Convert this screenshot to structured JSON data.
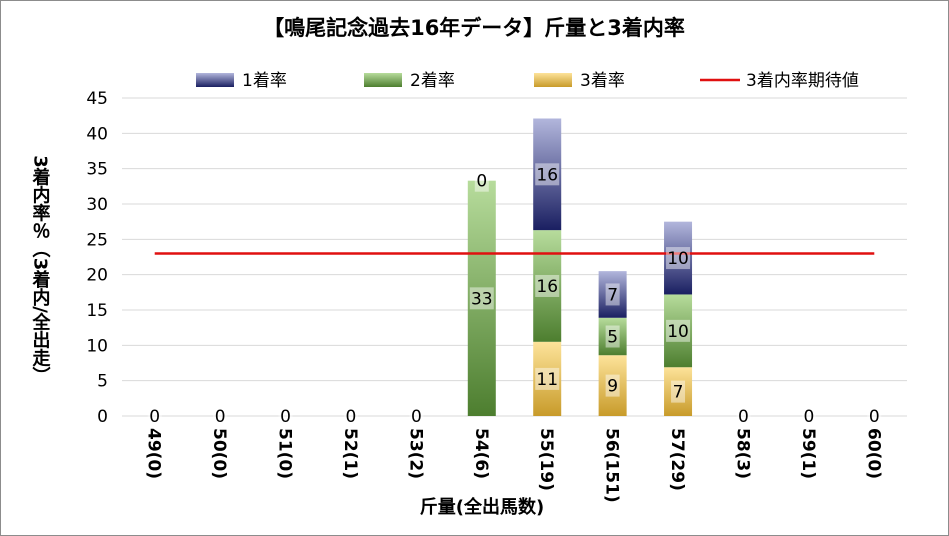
{
  "chart_data": {
    "type": "bar",
    "stacked": true,
    "title": "【鳴尾記念過去16年データ】斤量と3着内率",
    "xlabel": "斤量(全出馬数)",
    "ylabel": "3着内率％（3着内/全出走）",
    "ylim": [
      0,
      45
    ],
    "yticks": [
      0,
      5,
      10,
      15,
      20,
      25,
      30,
      35,
      40,
      45
    ],
    "grid": true,
    "legend_position": "top",
    "categories": [
      "49(0)",
      "50(0)",
      "51(0)",
      "52(1)",
      "53(2)",
      "54(6)",
      "55(19)",
      "56(151)",
      "57(29)",
      "58(3)",
      "59(1)",
      "60(0)"
    ],
    "series": [
      {
        "name": "3着率",
        "values": [
          0,
          0,
          0,
          0,
          0,
          0,
          10.5,
          8.6,
          6.9,
          0,
          0,
          0
        ],
        "labels": [
          "",
          "",
          "",
          "",
          "",
          "",
          "11",
          "9",
          "7",
          "",
          "",
          ""
        ],
        "colors": [
          "#fde39a",
          "#c89b2a"
        ]
      },
      {
        "name": "2着率",
        "values": [
          0,
          0,
          0,
          0,
          0,
          33.3,
          15.8,
          5.3,
          10.3,
          0,
          0,
          0
        ],
        "labels": [
          "0",
          "0",
          "0",
          "0",
          "0",
          "33",
          "16",
          "5",
          "10",
          "0",
          "0",
          "0"
        ],
        "colors": [
          "#b7dc9c",
          "#4d7e2f"
        ]
      },
      {
        "name": "1着率",
        "values": [
          0,
          0,
          0,
          0,
          0,
          0,
          15.8,
          6.6,
          10.3,
          0,
          0,
          0
        ],
        "labels": [
          "",
          "",
          "",
          "",
          "",
          "0",
          "16",
          "7",
          "10",
          "",
          "",
          ""
        ],
        "colors": [
          "#b2b6dc",
          "#1a1f61"
        ]
      }
    ],
    "reference_line": {
      "name": "3着内率期待値",
      "value": 23,
      "color": "#e01010"
    }
  }
}
